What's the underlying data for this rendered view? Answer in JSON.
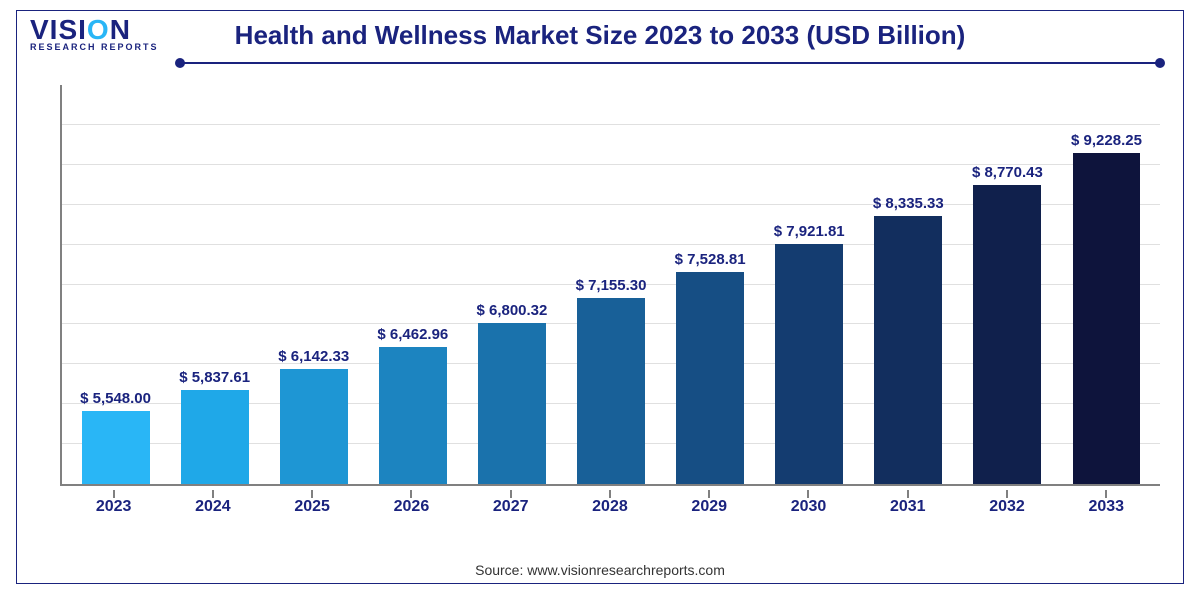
{
  "logo": {
    "main": "VISI",
    "accent": "O",
    "main2": "N",
    "sub": "RESEARCH REPORTS"
  },
  "title": "Health and Wellness Market Size 2023 to 2033 (USD Billion)",
  "source": "Source: www.visionresearchreports.com",
  "chart": {
    "type": "bar",
    "categories": [
      "2023",
      "2024",
      "2025",
      "2026",
      "2027",
      "2028",
      "2029",
      "2030",
      "2031",
      "2032",
      "2033"
    ],
    "value_labels": [
      "$ 5,548.00",
      "$ 5,837.61",
      "$ 6,142.33",
      "$ 6,462.96",
      "$ 6,800.32",
      "$ 7,155.30",
      "$ 7,528.81",
      "$ 7,921.81",
      "$ 8,335.33",
      "$ 8,770.43",
      "$ 9,228.25"
    ],
    "values": [
      5548.0,
      5837.61,
      6142.33,
      6462.96,
      6800.32,
      7155.3,
      7528.81,
      7921.81,
      8335.33,
      8770.43,
      9228.25
    ],
    "bar_colors": [
      "#29b6f6",
      "#1fa8e8",
      "#1e96d4",
      "#1c84c0",
      "#1a72ac",
      "#186098",
      "#164e84",
      "#143c70",
      "#122e5e",
      "#10204c",
      "#0e143c"
    ],
    "ylim": [
      4500,
      10200
    ],
    "gridline_count": 9,
    "grid_color": "#e0e0e0",
    "axis_color": "#808080",
    "background_color": "#ffffff",
    "title_color": "#1a237e",
    "title_fontsize": 26,
    "label_color": "#1a237e",
    "label_fontsize": 15,
    "category_fontsize": 16,
    "bar_width": 0.78
  }
}
